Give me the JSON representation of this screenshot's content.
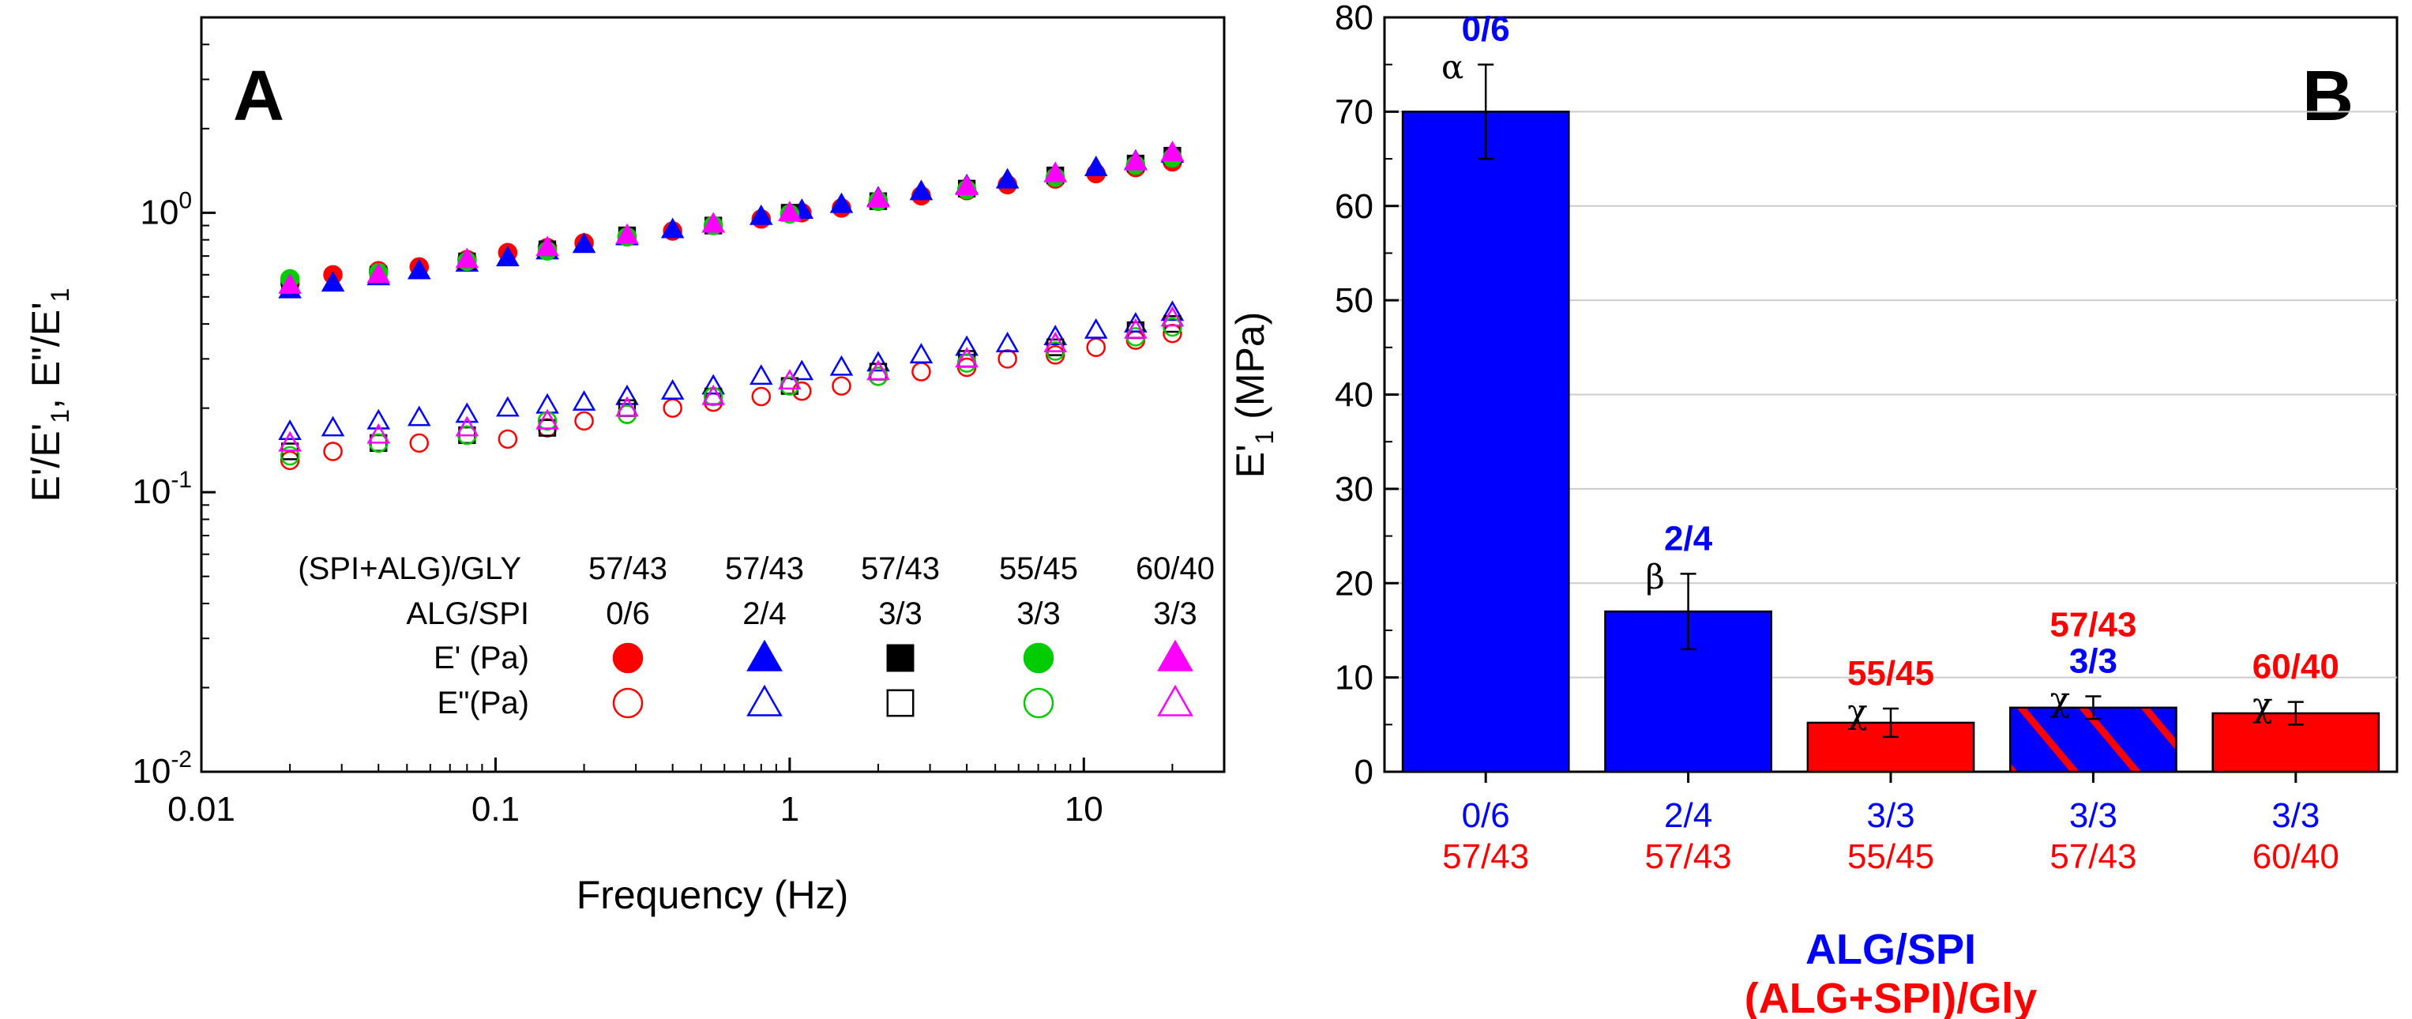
{
  "chart_data": [
    {
      "panel_label": "A",
      "type": "scatter",
      "xlabel": "Frequency (Hz)",
      "ylabel_main": "E'/E'",
      "ylabel_sub1": "1",
      "ylabel_mid": ", E\"/E'",
      "ylabel_sub2": "1",
      "xscale": "log",
      "yscale": "log",
      "xlim": [
        0.01,
        30
      ],
      "ylim": [
        0.01,
        5
      ],
      "xticks": [
        0.01,
        0.1,
        1,
        10
      ],
      "xtick_labels": [
        "0.01",
        "0.1",
        "1",
        "10"
      ],
      "yticks": [
        0.01,
        0.1,
        1
      ],
      "ytick_bases": [
        "10",
        "10",
        "10"
      ],
      "ytick_exps": [
        "-2",
        "-1",
        "0"
      ],
      "legend": {
        "row_labels": [
          "(SPI+ALG)/GLY",
          "ALG/SPI",
          "E' (Pa)",
          "E\"(Pa)"
        ],
        "columns": [
          {
            "gly": "57/43",
            "algspi": "0/6"
          },
          {
            "gly": "57/43",
            "algspi": "2/4"
          },
          {
            "gly": "57/43",
            "algspi": "3/3"
          },
          {
            "gly": "55/45",
            "algspi": "3/3"
          },
          {
            "gly": "60/40",
            "algspi": "3/3"
          }
        ]
      },
      "series": [
        {
          "name": "57/43 0/6",
          "color": "#ff0000",
          "marker": "circle",
          "x": [
            0.02,
            0.028,
            0.04,
            0.055,
            0.08,
            0.11,
            0.15,
            0.2,
            0.28,
            0.4,
            0.55,
            0.8,
            1.1,
            1.5,
            2.0,
            2.8,
            4.0,
            5.5,
            8.0,
            11,
            15,
            20
          ],
          "y_storage": [
            0.56,
            0.6,
            0.62,
            0.64,
            0.68,
            0.72,
            0.75,
            0.78,
            0.82,
            0.86,
            0.9,
            0.95,
            1.0,
            1.04,
            1.1,
            1.15,
            1.2,
            1.26,
            1.32,
            1.38,
            1.45,
            1.52
          ],
          "y_loss": [
            0.13,
            0.14,
            0.15,
            0.15,
            0.16,
            0.155,
            0.17,
            0.18,
            0.19,
            0.2,
            0.21,
            0.22,
            0.23,
            0.24,
            0.26,
            0.27,
            0.28,
            0.3,
            0.31,
            0.33,
            0.35,
            0.37
          ]
        },
        {
          "name": "57/43 2/4",
          "color": "#0000ff",
          "marker": "triangle",
          "x": [
            0.02,
            0.028,
            0.04,
            0.055,
            0.08,
            0.11,
            0.15,
            0.2,
            0.28,
            0.4,
            0.55,
            0.8,
            1.1,
            1.5,
            2.0,
            2.8,
            4.0,
            5.5,
            8.0,
            11,
            15,
            20
          ],
          "y_storage": [
            0.53,
            0.56,
            0.59,
            0.62,
            0.66,
            0.69,
            0.73,
            0.77,
            0.82,
            0.87,
            0.91,
            0.97,
            1.02,
            1.07,
            1.13,
            1.19,
            1.25,
            1.31,
            1.38,
            1.45,
            1.53,
            1.62
          ],
          "y_loss": [
            0.165,
            0.17,
            0.18,
            0.185,
            0.19,
            0.2,
            0.205,
            0.21,
            0.22,
            0.23,
            0.24,
            0.26,
            0.27,
            0.28,
            0.29,
            0.31,
            0.33,
            0.34,
            0.36,
            0.38,
            0.4,
            0.44
          ]
        },
        {
          "name": "57/43 3/3",
          "color": "#000000",
          "marker": "square",
          "x": [
            0.02,
            0.04,
            0.08,
            0.15,
            0.28,
            0.55,
            1.0,
            2.0,
            4.0,
            8.0,
            15,
            20
          ],
          "y_storage": [
            0.56,
            0.6,
            0.67,
            0.74,
            0.83,
            0.9,
            1.0,
            1.1,
            1.22,
            1.36,
            1.5,
            1.6
          ],
          "y_loss": [
            0.14,
            0.15,
            0.16,
            0.17,
            0.2,
            0.22,
            0.24,
            0.27,
            0.3,
            0.33,
            0.38,
            0.4
          ]
        },
        {
          "name": "55/45 3/3",
          "color": "#00cc00",
          "marker": "circle",
          "x": [
            0.02,
            0.04,
            0.08,
            0.15,
            0.28,
            0.55,
            1.0,
            2.0,
            4.0,
            8.0,
            15,
            20
          ],
          "y_storage": [
            0.58,
            0.61,
            0.67,
            0.73,
            0.82,
            0.9,
            0.99,
            1.1,
            1.21,
            1.34,
            1.48,
            1.57
          ],
          "y_loss": [
            0.135,
            0.15,
            0.16,
            0.18,
            0.19,
            0.22,
            0.24,
            0.26,
            0.29,
            0.32,
            0.36,
            0.39
          ]
        },
        {
          "name": "60/40 3/3",
          "color": "#ff00ff",
          "marker": "triangle",
          "x": [
            0.02,
            0.04,
            0.08,
            0.15,
            0.28,
            0.55,
            1.0,
            2.0,
            4.0,
            8.0,
            15,
            20
          ],
          "y_storage": [
            0.55,
            0.6,
            0.68,
            0.75,
            0.83,
            0.91,
            1.0,
            1.12,
            1.24,
            1.38,
            1.52,
            1.64
          ],
          "y_loss": [
            0.15,
            0.16,
            0.17,
            0.18,
            0.2,
            0.22,
            0.25,
            0.27,
            0.3,
            0.34,
            0.38,
            0.42
          ]
        }
      ]
    },
    {
      "panel_label": "B",
      "type": "bar",
      "ylabel_main": "E'",
      "ylabel_sub": "1",
      "ylabel_rest": " (MPa)",
      "ylim": [
        0,
        80
      ],
      "yticks": [
        0,
        10,
        20,
        30,
        40,
        50,
        60,
        70,
        80
      ],
      "xlabel_line1": "ALG/SPI",
      "xlabel_line2": "(ALG+SPI)/Gly",
      "categories_algspi": [
        "0/6",
        "2/4",
        "3/3",
        "3/3",
        "3/3"
      ],
      "categories_gly": [
        "57/43",
        "57/43",
        "55/45",
        "57/43",
        "60/40"
      ],
      "values": [
        70,
        17,
        5.2,
        6.8,
        6.2
      ],
      "errors": [
        5,
        4,
        1.5,
        1.2,
        1.2
      ],
      "significance": [
        "α",
        "β",
        "χ",
        "χ",
        "χ"
      ],
      "bar_fill": [
        "#0000ff",
        "#0000ff",
        "#ff0000",
        "hatched",
        "#ff0000"
      ],
      "top_labels": [
        [
          "0/6"
        ],
        [
          "2/4"
        ],
        [
          "55/45"
        ],
        [
          "57/43",
          "3/3"
        ],
        [
          "60/40"
        ]
      ],
      "top_label_colors": [
        [
          "#0000ff"
        ],
        [
          "#0000ff"
        ],
        [
          "#ff0000"
        ],
        [
          "#ff0000",
          "#0000ff"
        ],
        [
          "#ff0000"
        ]
      ]
    }
  ],
  "colors": {
    "blue": "#0000ff",
    "red": "#ff0000",
    "green": "#00cc00",
    "magenta": "#ff00ff",
    "black": "#000000"
  }
}
